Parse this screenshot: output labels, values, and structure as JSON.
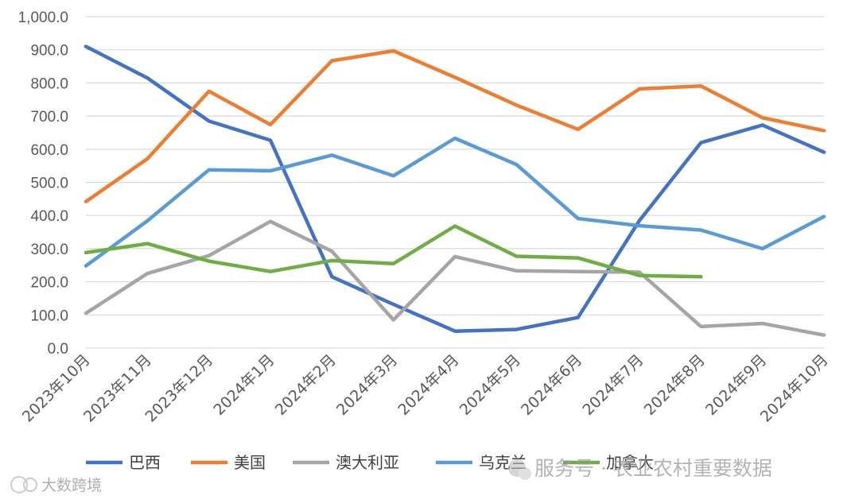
{
  "chart_data": {
    "type": "line",
    "title": "",
    "xlabel": "",
    "ylabel": "",
    "ylim": [
      0,
      1000
    ],
    "y_ticks": [
      "0.0",
      "100.0",
      "200.0",
      "300.0",
      "400.0",
      "500.0",
      "600.0",
      "700.0",
      "800.0",
      "900.0",
      "1,000.0"
    ],
    "y_tick_values": [
      0,
      100,
      200,
      300,
      400,
      500,
      600,
      700,
      800,
      900,
      1000
    ],
    "grid": true,
    "legend_position": "bottom",
    "categories": [
      "2023年10月",
      "2023年11月",
      "2023年12月",
      "2024年1月",
      "2024年2月",
      "2024年3月",
      "2024年4月",
      "2024年5月",
      "2024年6月",
      "2024年7月",
      "2024年8月",
      "2024年9月",
      "2024年10月"
    ],
    "series": [
      {
        "name": "巴西",
        "color": "#4472C4",
        "values": [
          910,
          815,
          685,
          627,
          215,
          132,
          51,
          56,
          92,
          385,
          620,
          673,
          591
        ]
      },
      {
        "name": "美国",
        "color": "#ED7D31",
        "values": [
          442,
          571,
          775,
          674,
          867,
          897,
          817,
          733,
          660,
          782,
          791,
          695,
          656
        ]
      },
      {
        "name": "澳大利亚",
        "color": "#A5A5A5",
        "values": [
          105,
          225,
          279,
          382,
          292,
          85,
          276,
          233,
          231,
          229,
          65,
          74,
          39
        ]
      },
      {
        "name": "乌克兰",
        "color": "#5B9BD5",
        "values": [
          248,
          384,
          538,
          535,
          582,
          520,
          633,
          554,
          391,
          369,
          356,
          300,
          397
        ]
      },
      {
        "name": "加拿大",
        "color": "#70AD47",
        "values": [
          288,
          315,
          262,
          231,
          264,
          255,
          368,
          277,
          272,
          219,
          215,
          null,
          null
        ]
      }
    ]
  },
  "watermarks": {
    "right": "服务号 · 农业农村重要数据",
    "left": "大数跨境"
  }
}
